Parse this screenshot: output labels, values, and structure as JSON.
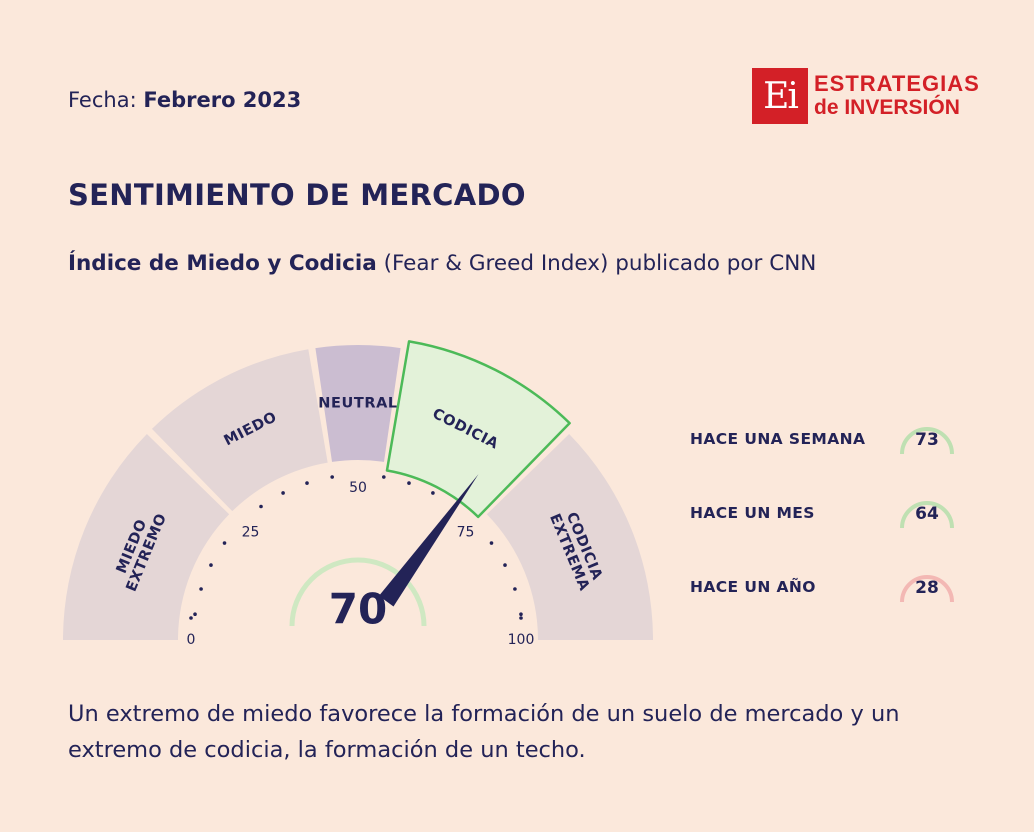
{
  "header": {
    "date_label": "Fecha:",
    "date_value": "Febrero 2023",
    "logo_mark": "Ei",
    "logo_line1": "ESTRATEGIAS",
    "logo_line2": "de INVERSIÓN",
    "brand_color": "#d32027"
  },
  "title": "SENTIMIENTO DE MERCADO",
  "subtitle": {
    "bold": "Índice de Miedo y Codicia",
    "rest": " (Fear & Greed Index) publicado por CNN"
  },
  "chart_data": {
    "type": "gauge",
    "value": 70,
    "range": [
      0,
      100
    ],
    "ticks": [
      0,
      25,
      50,
      75,
      100
    ],
    "zones": [
      {
        "label": [
          "MIEDO",
          "EXTREMO"
        ],
        "from": 0,
        "to": 25,
        "color": "#e4d6d6",
        "active": false
      },
      {
        "label": [
          "MIEDO"
        ],
        "from": 25,
        "to": 45,
        "color": "#e4d6d6",
        "active": false
      },
      {
        "label": [
          "NEUTRAL"
        ],
        "from": 45,
        "to": 55,
        "color": "#cbbdd1",
        "active": false
      },
      {
        "label": [
          "CODICIA"
        ],
        "from": 55,
        "to": 75,
        "color": "#e3f2d9",
        "active": true,
        "outline": "#4cba58"
      },
      {
        "label": [
          "CODICIA",
          "EXTREMA"
        ],
        "from": 75,
        "to": 100,
        "color": "#e4d6d6",
        "active": false
      }
    ],
    "history": [
      {
        "label": "HACE UNA SEMANA",
        "value": 73,
        "accent": "#bfe0b2"
      },
      {
        "label": "HACE UN MES",
        "value": 64,
        "accent": "#bfe0b2"
      },
      {
        "label": "HACE UN AÑO",
        "value": 28,
        "accent": "#f3b8b4"
      }
    ]
  },
  "footer": "Un extremo de miedo favorece la formación de un suelo de mercado y un extremo de codicia, la formación de un techo."
}
